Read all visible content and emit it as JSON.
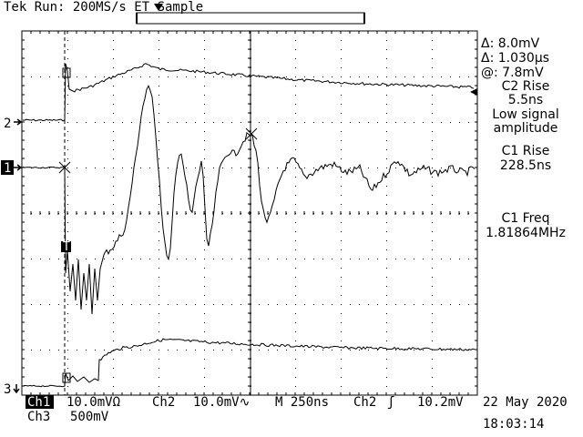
{
  "header": {
    "status": "Tek Run: 200MS/s ET Sample"
  },
  "channel_markers": {
    "ch2_label": "2",
    "ch1_label": "1",
    "ch3_label": "3",
    "trigger_label": "T"
  },
  "readout": {
    "delta_v": "Δ: 8.0mV",
    "delta_t": "Δ: 1.030μs",
    "at_v": "@: 7.8mV",
    "c2_rise_title": "C2 Rise",
    "c2_rise_value": "5.5ns",
    "warn_line1": "Low signal",
    "warn_line2": "amplitude",
    "c1_rise_title": "C1 Rise",
    "c1_rise_value": "228.5ns",
    "c1_freq_title": "C1 Freq",
    "c1_freq_value": "1.81864MHz"
  },
  "footer": {
    "ch1_badge": "Ch1",
    "ch1_scale": "10.0mVΩ",
    "ch2_label": "Ch2",
    "ch2_scale": "10.0mV∿",
    "timebase": "M 250ns",
    "trig_source": "Ch2",
    "trig_slope": "ʃ",
    "trig_level": "10.2mV",
    "ch3_label": "Ch3",
    "ch3_scale": "500mV",
    "date": "22 May 2020",
    "time": "18:03:14"
  },
  "colors": {
    "background": "#ffffff",
    "trace": "#000000",
    "badge": "#000000"
  }
}
